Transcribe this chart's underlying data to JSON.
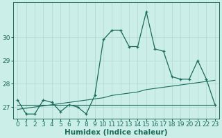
{
  "xlabel": "Humidex (Indice chaleur)",
  "ylabel": "",
  "background_color": "#cceee8",
  "grid_color": "#b0d8d0",
  "line_color": "#1a6b5a",
  "ylim": [
    26.5,
    31.5
  ],
  "xlim": [
    -0.5,
    23.5
  ],
  "x": [
    0,
    1,
    2,
    3,
    4,
    5,
    6,
    7,
    8,
    9,
    10,
    11,
    12,
    13,
    14,
    15,
    16,
    17,
    18,
    19,
    20,
    21,
    22,
    23
  ],
  "y_main": [
    27.3,
    26.7,
    26.7,
    27.3,
    27.2,
    26.8,
    27.1,
    27.0,
    26.7,
    27.5,
    29.9,
    30.3,
    30.3,
    29.6,
    29.6,
    31.1,
    29.5,
    29.4,
    28.3,
    28.2,
    28.2,
    29.0,
    28.2,
    27.1
  ],
  "y_reg1": [
    27.1,
    27.1,
    27.1,
    27.1,
    27.1,
    27.1,
    27.1,
    27.1,
    27.1,
    27.1,
    27.1,
    27.1,
    27.1,
    27.1,
    27.1,
    27.1,
    27.1,
    27.1,
    27.1,
    27.1,
    27.1,
    27.1,
    27.1,
    27.1
  ],
  "y_reg2": [
    26.9,
    26.95,
    27.0,
    27.05,
    27.1,
    27.15,
    27.2,
    27.25,
    27.3,
    27.35,
    27.4,
    27.5,
    27.55,
    27.6,
    27.65,
    27.75,
    27.8,
    27.85,
    27.9,
    27.95,
    28.0,
    28.05,
    28.1,
    28.15
  ],
  "yticks": [
    27,
    28,
    29,
    30
  ],
  "tick_fontsize": 6.5,
  "axis_fontsize": 7.5
}
